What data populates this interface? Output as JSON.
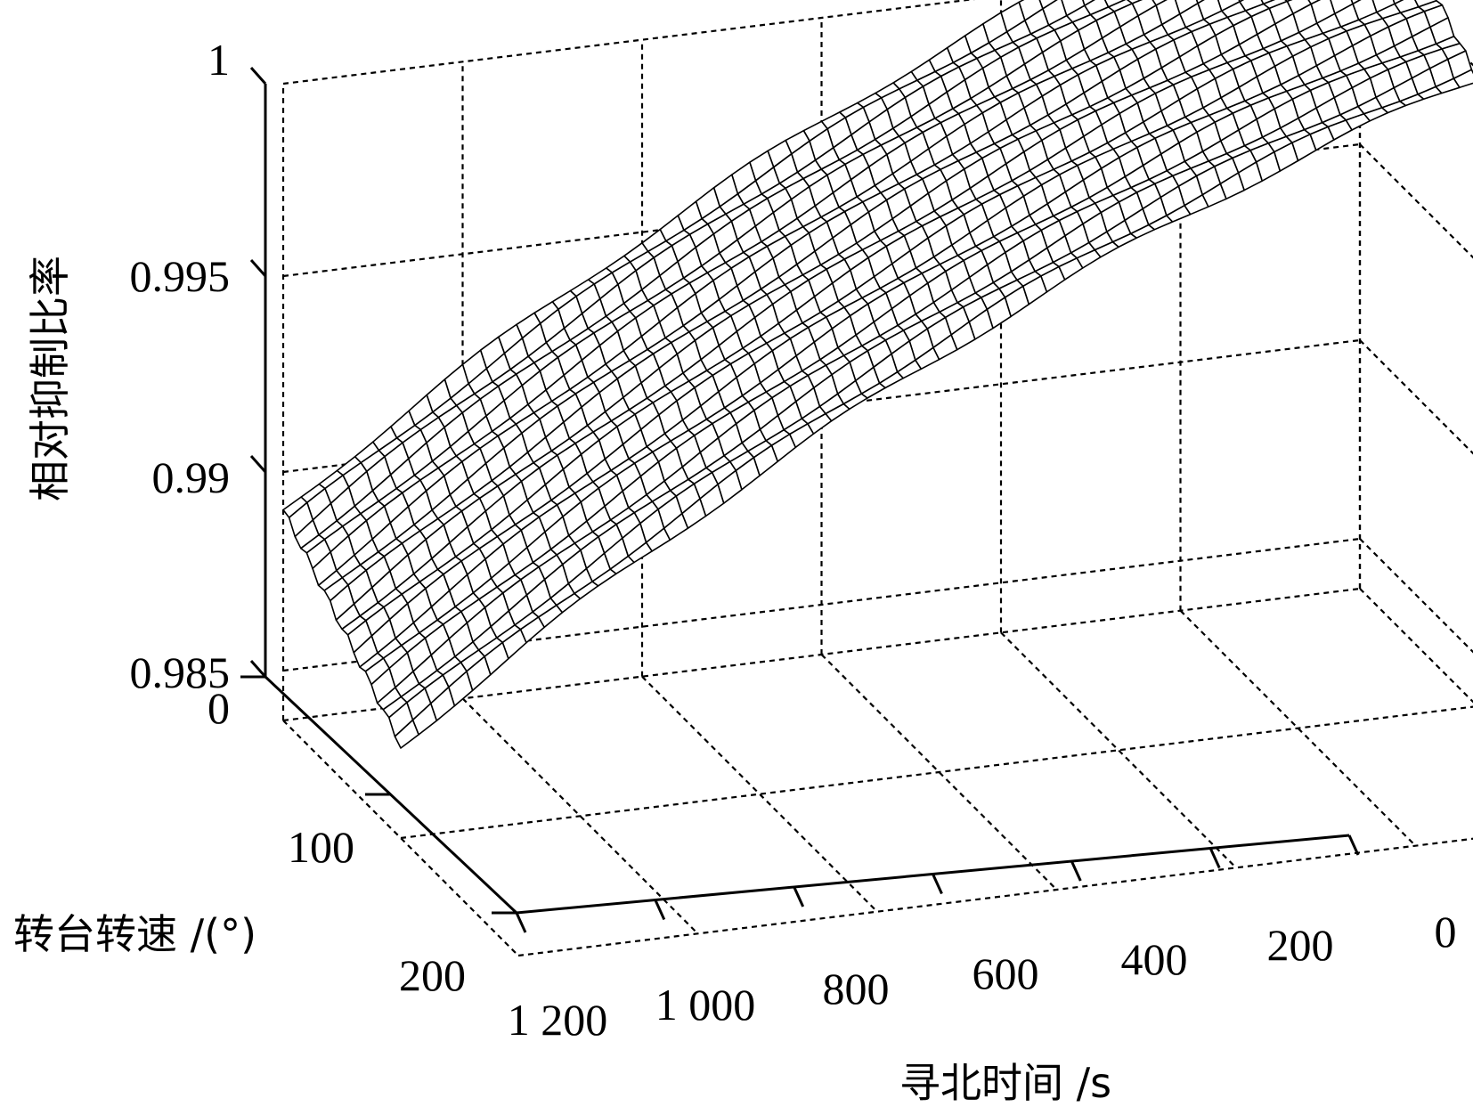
{
  "chart_data": {
    "type": "surface",
    "xlabel": "转台转速 /(°)",
    "ylabel": "寻北时间 /s",
    "zlabel": "相对抑制比率",
    "x_ticks": [
      "0",
      "100",
      "200"
    ],
    "y_ticks": [
      "1 200",
      "1 000",
      "800",
      "600",
      "400",
      "200",
      "0"
    ],
    "z_ticks": [
      "0.985",
      "0.99",
      "0.995",
      "1"
    ],
    "x_ticks_num": [
      0,
      100,
      200
    ],
    "y_ticks_num": [
      1200,
      1000,
      800,
      600,
      400,
      200,
      0
    ],
    "z_ticks_num": [
      0.985,
      0.99,
      0.995,
      1
    ],
    "xlim": [
      0,
      200
    ],
    "ylim": [
      0,
      1200
    ],
    "zlim": [
      0.985,
      1
    ],
    "grid": true,
    "surface": {
      "x_range": [
        0,
        100
      ],
      "y_range": [
        0,
        1200
      ],
      "x_samples": 21,
      "y_samples": 61,
      "corner_values": {
        "x0_y0": 0.9994,
        "x0_y1200": 0.9891,
        "x100_y0": 0.9994,
        "x100_y1200": 0.9891
      }
    }
  }
}
